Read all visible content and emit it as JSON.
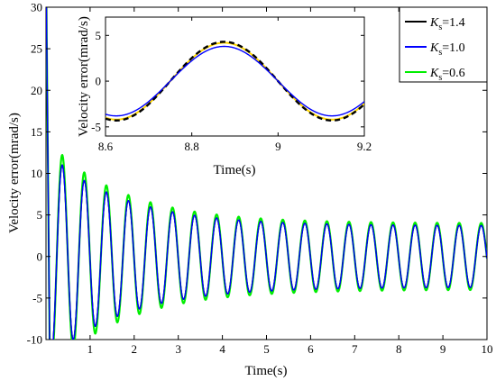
{
  "chart_data": [
    {
      "type": "line",
      "id": "main",
      "xlabel": "Time(s)",
      "ylabel": "Velocity error(mrad/s)",
      "xlim": [
        0,
        10
      ],
      "ylim": [
        -10,
        30
      ],
      "xticks": [
        1,
        2,
        3,
        4,
        5,
        6,
        7,
        8,
        9,
        10
      ],
      "xtick_labels": [
        "1",
        "2",
        "3",
        "4",
        "5",
        "6",
        "7",
        "8",
        "9",
        "10"
      ],
      "yticks": [
        -10,
        -5,
        0,
        5,
        10,
        15,
        20,
        25,
        30
      ],
      "ytick_labels": [
        "-10",
        "-5",
        "0",
        "5",
        "10",
        "15",
        "20",
        "25",
        "30"
      ],
      "grid": false,
      "legend_position": "top-right",
      "oscillation_frequency_hz": 2.0,
      "peak_time_s": 0.37,
      "series": [
        {
          "name_main": "K",
          "name_sub": "s",
          "name_suffix": "=1.4",
          "color": "#000000",
          "dash": "",
          "peak_value": 11.0,
          "initial_value": 30.0,
          "settled_amplitude": 3.7
        },
        {
          "name_main": "K",
          "name_sub": "s",
          "name_suffix": "=1.0",
          "color": "#0000ff",
          "dash": "",
          "peak_value": 11.0,
          "initial_value": 30.0,
          "settled_amplitude": 3.7
        },
        {
          "name_main": "K",
          "name_sub": "s",
          "name_suffix": "=0.6",
          "color": "#00ee00",
          "dash": "",
          "peak_value": 12.2,
          "initial_value": 30.0,
          "settled_amplitude": 4.0
        }
      ]
    },
    {
      "type": "line",
      "id": "inset",
      "xlabel": "Time(s)",
      "ylabel": "Velocity error(mrad/s)",
      "xlim": [
        8.6,
        9.2
      ],
      "ylim": [
        -6,
        7
      ],
      "xticks": [
        8.6,
        8.8,
        9.0,
        9.2
      ],
      "xtick_labels": [
        "8.6",
        "8.8",
        "9",
        "9.2"
      ],
      "yticks": [
        -5,
        0,
        5
      ],
      "ytick_labels": [
        "-5",
        "0",
        "5"
      ],
      "grid": false,
      "peak_time_s": 8.875,
      "series": [
        {
          "name": "K_s=1.4",
          "color": "#000000",
          "dash": "6,4",
          "amplitude": 4.3,
          "width": 2.4
        },
        {
          "name": "K_s=1.0",
          "color": "#0000ff",
          "dash": "",
          "amplitude": 3.8,
          "width": 1.4
        },
        {
          "name": "K_s=0.6",
          "color": "#ffd700",
          "dash": "",
          "amplitude": 4.2,
          "width": 2.0
        }
      ]
    }
  ]
}
